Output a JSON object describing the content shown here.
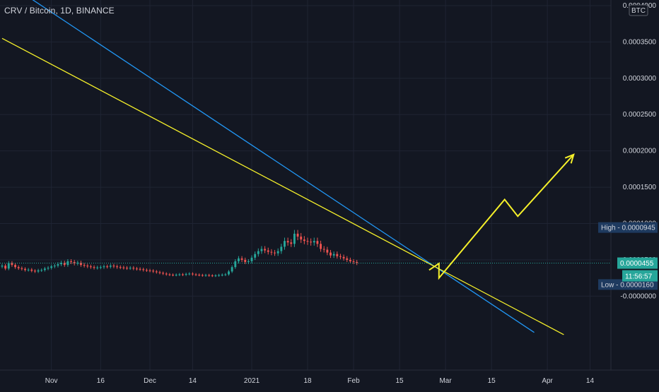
{
  "chart_data": {
    "type": "candlestick",
    "title": "CRV / Bitcoin, 1D, BINANCE",
    "currency_badge": "BTC",
    "ylim": [
      -6e-05,
      0.0004
    ],
    "y_ticks": [
      {
        "value": 0.0004,
        "label": "0.0004000"
      },
      {
        "value": 0.00035,
        "label": "0.0003500"
      },
      {
        "value": 0.0003,
        "label": "0.0003000"
      },
      {
        "value": 0.00025,
        "label": "0.0002500"
      },
      {
        "value": 0.0002,
        "label": "0.0002000"
      },
      {
        "value": 0.00015,
        "label": "0.0001500"
      },
      {
        "value": 0.0001,
        "label": "0.0001000"
      },
      {
        "value": 5e-05,
        "label": "0.0000500"
      },
      {
        "value": 0.0,
        "label": "-0.0000000"
      }
    ],
    "x_ticks": [
      {
        "date": "2020-11-01",
        "label": "Nov"
      },
      {
        "date": "2020-11-16",
        "label": "16"
      },
      {
        "date": "2020-12-01",
        "label": "Dec"
      },
      {
        "date": "2020-12-14",
        "label": "14"
      },
      {
        "date": "2021-01-01",
        "label": "2021"
      },
      {
        "date": "2021-01-18",
        "label": "18"
      },
      {
        "date": "2021-02-01",
        "label": "Feb"
      },
      {
        "date": "2021-02-15",
        "label": "15"
      },
      {
        "date": "2021-03-01",
        "label": "Mar"
      },
      {
        "date": "2021-03-15",
        "label": "15"
      },
      {
        "date": "2021-04-01",
        "label": "Apr"
      },
      {
        "date": "2021-04-14",
        "label": "14"
      }
    ],
    "x_range": [
      "2020-10-17",
      "2021-04-21"
    ],
    "first_candle_date": "2020-10-17",
    "closes": [
      4.2e-05,
      3.8e-05,
      4.55e-05,
      4.3e-05,
      4e-05,
      3.85e-05,
      3.75e-05,
      3.6e-05,
      3.65e-05,
      3.5e-05,
      3.4e-05,
      3.55e-05,
      3.6e-05,
      3.8e-05,
      3.9e-05,
      4.1e-05,
      4.2e-05,
      4.4e-05,
      4.6e-05,
      4.3e-05,
      4.8e-05,
      4.7e-05,
      4.5e-05,
      4.6e-05,
      4.3e-05,
      4.2e-05,
      4.1e-05,
      4e-05,
      3.9e-05,
      3.95e-05,
      4e-05,
      4.1e-05,
      4.05e-05,
      4.2e-05,
      4.1e-05,
      4e-05,
      3.95e-05,
      3.9e-05,
      3.85e-05,
      3.9e-05,
      3.8e-05,
      3.75e-05,
      3.7e-05,
      3.6e-05,
      3.55e-05,
      3.5e-05,
      3.4e-05,
      3.3e-05,
      3.2e-05,
      3.1e-05,
      3e-05,
      2.95e-05,
      2.9e-05,
      2.95e-05,
      3e-05,
      2.95e-05,
      3.05e-05,
      3.1e-05,
      3e-05,
      2.95e-05,
      2.9e-05,
      2.85e-05,
      2.9e-05,
      2.85e-05,
      2.8e-05,
      2.85e-05,
      2.9e-05,
      2.95e-05,
      3e-05,
      3.4e-05,
      4e-05,
      4.8e-05,
      5.2e-05,
      5e-05,
      4.7e-05,
      4.8e-05,
      5.3e-05,
      5.8e-05,
      6.2e-05,
      6.5e-05,
      6.3e-05,
      6.1e-05,
      6e-05,
      5.9e-05,
      6.2e-05,
      6.8e-05,
      7.6e-05,
      7.4e-05,
      7.2e-05,
      8.6e-05,
      8.2e-05,
      7.8e-05,
      7.6e-05,
      7.5e-05,
      7.4e-05,
      7.6e-05,
      7.2e-05,
      6.5e-05,
      6.4e-05,
      6e-05,
      5.6e-05,
      5.8e-05,
      5.5e-05,
      5.4e-05,
      5.2e-05,
      5e-05,
      4.8e-05,
      4.7e-05,
      4.55e-05
    ],
    "high": {
      "value": 9.45e-05,
      "label": "High - 0.0000945"
    },
    "low": {
      "value": 1.6e-05,
      "label": "Low - 0.0000160"
    },
    "current": {
      "value": 4.55e-05,
      "label": "0.0000455",
      "countdown": "11:56:57"
    },
    "trendlines": [
      {
        "color": "#2196f3",
        "from": {
          "date": "2020-10-09",
          "value": 0.00046
        },
        "to": {
          "date": "2021-03-28",
          "value": -5e-05
        }
      },
      {
        "color": "#f5f02a",
        "from": {
          "date": "2020-10-17",
          "value": 0.000355
        },
        "to": {
          "date": "2021-04-06",
          "value": -5.3e-05
        }
      }
    ],
    "projection": {
      "color": "#f5f02a",
      "points": [
        {
          "date": "2021-02-24",
          "value": 3.6e-05
        },
        {
          "date": "2021-02-27",
          "value": 4.5e-05
        },
        {
          "date": "2021-02-27",
          "value": 2.5e-05
        },
        {
          "date": "2021-03-19",
          "value": 0.000133
        },
        {
          "date": "2021-03-23",
          "value": 0.00011
        },
        {
          "date": "2021-04-09",
          "value": 0.000195
        }
      ]
    },
    "colors": {
      "up": "#26a69a",
      "down": "#ef5350",
      "grid": "#1f2433",
      "axis_text": "#d1d4dc",
      "bg": "#131722"
    }
  }
}
